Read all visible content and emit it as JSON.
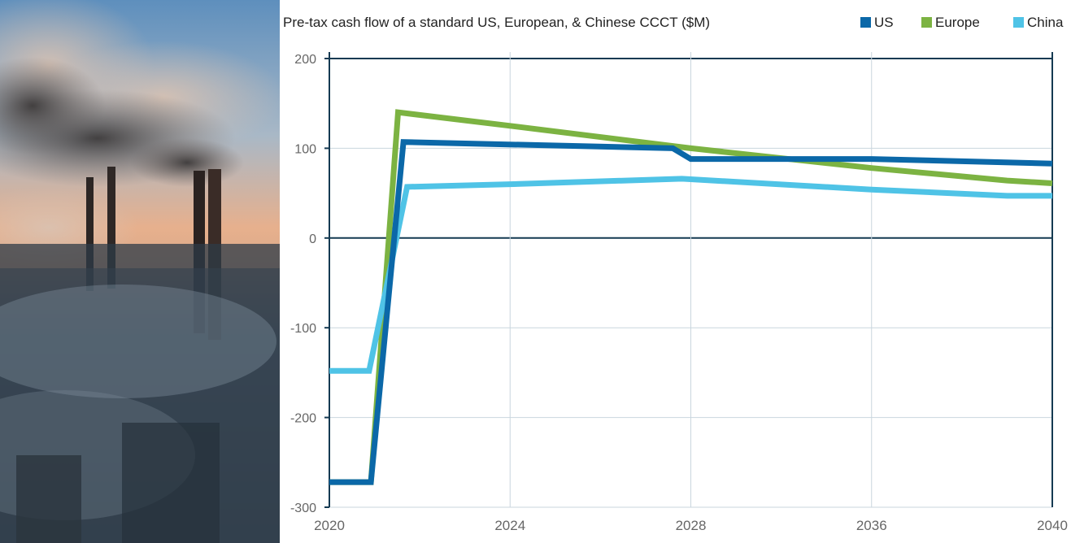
{
  "chart_data": {
    "type": "line",
    "title": "Pre-tax cash flow of a standard US, European, & Chinese CCCT ($M)",
    "xlabel": "",
    "ylabel": "",
    "x_ticks": [
      "2020",
      "2024",
      "2028",
      "2036",
      "2040"
    ],
    "y_ticks": [
      "200",
      "100",
      "0",
      "-100",
      "-200",
      "-300"
    ],
    "ylim": [
      -300,
      200
    ],
    "legend_position": "top-right",
    "grid": true,
    "series": [
      {
        "name": "US",
        "color": "#0b68a8",
        "points": [
          [
            0,
            -272
          ],
          [
            0.23,
            -272
          ],
          [
            0.41,
            107
          ],
          [
            1.9,
            100
          ],
          [
            2.0,
            88
          ],
          [
            3.0,
            88
          ],
          [
            4.0,
            83
          ]
        ]
      },
      {
        "name": "Europe",
        "color": "#7cb342",
        "points": [
          [
            0,
            -272
          ],
          [
            0.23,
            -272
          ],
          [
            0.38,
            140
          ],
          [
            1.0,
            125
          ],
          [
            2.0,
            100
          ],
          [
            3.0,
            78
          ],
          [
            3.75,
            64
          ],
          [
            4.0,
            61
          ]
        ]
      },
      {
        "name": "China",
        "color": "#4fc3e6",
        "points": [
          [
            0,
            -148
          ],
          [
            0.22,
            -148
          ],
          [
            0.43,
            57
          ],
          [
            1.0,
            60
          ],
          [
            1.95,
            66
          ],
          [
            3.0,
            54
          ],
          [
            3.75,
            47
          ],
          [
            4.0,
            47
          ]
        ]
      }
    ]
  },
  "photo": {
    "description_icon": "factory-smokestacks-photo"
  }
}
